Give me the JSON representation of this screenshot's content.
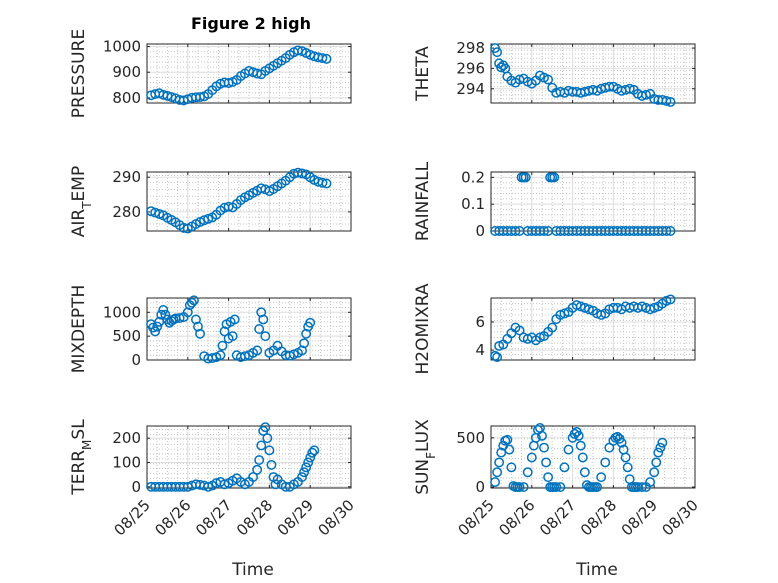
{
  "figure_title": "Figure 2 high",
  "x_axis": {
    "label": "Time",
    "ticks": [
      "08/25",
      "08/26",
      "08/27",
      "08/28",
      "08/29",
      "08/30"
    ],
    "range_days": [
      0,
      5
    ]
  },
  "colors": {
    "marker": "#0072BD",
    "axis": "#262626",
    "grid": "#dfdfdf"
  },
  "chart_data": [
    {
      "type": "scatter",
      "id": "pressure",
      "ylabel": "PRESSURE",
      "title": "Figure 2 high",
      "ylim": [
        780,
        1010
      ],
      "yticks": [
        800,
        900,
        1000
      ],
      "yticklabels": [
        "800",
        "900",
        "1000"
      ],
      "x": [
        0.1,
        0.2,
        0.3,
        0.4,
        0.5,
        0.6,
        0.7,
        0.8,
        0.9,
        1.0,
        1.1,
        1.2,
        1.3,
        1.4,
        1.5,
        1.6,
        1.7,
        1.8,
        1.9,
        2.0,
        2.1,
        2.2,
        2.3,
        2.4,
        2.5,
        2.6,
        2.7,
        2.8,
        2.9,
        3.0,
        3.1,
        3.2,
        3.3,
        3.4,
        3.5,
        3.6,
        3.7,
        3.8,
        3.9,
        4.0,
        4.1,
        4.2,
        4.3,
        4.4
      ],
      "values": [
        810,
        815,
        818,
        812,
        808,
        803,
        798,
        792,
        790,
        795,
        800,
        802,
        803,
        806,
        815,
        830,
        845,
        855,
        860,
        858,
        862,
        870,
        885,
        895,
        905,
        900,
        895,
        892,
        905,
        915,
        925,
        935,
        945,
        955,
        968,
        978,
        985,
        982,
        975,
        968,
        962,
        958,
        955,
        952
      ]
    },
    {
      "type": "scatter",
      "id": "theta",
      "ylabel": "THETA",
      "ylim": [
        292.6,
        298.4
      ],
      "yticks": [
        294,
        296,
        298
      ],
      "yticklabels": [
        "294",
        "296",
        "298"
      ],
      "x": [
        0.1,
        0.15,
        0.2,
        0.25,
        0.3,
        0.35,
        0.4,
        0.5,
        0.6,
        0.7,
        0.8,
        0.9,
        1.0,
        1.1,
        1.2,
        1.3,
        1.4,
        1.5,
        1.6,
        1.7,
        1.8,
        1.9,
        2.0,
        2.1,
        2.2,
        2.3,
        2.4,
        2.5,
        2.6,
        2.7,
        2.8,
        2.9,
        3.0,
        3.1,
        3.2,
        3.3,
        3.4,
        3.5,
        3.6,
        3.7,
        3.8,
        3.9,
        4.0,
        4.1,
        4.2,
        4.3,
        4.4
      ],
      "values": [
        298.0,
        297.6,
        296.5,
        296.1,
        296.3,
        296.0,
        295.2,
        294.8,
        294.6,
        294.9,
        295.0,
        294.7,
        294.5,
        294.8,
        295.3,
        295.1,
        294.9,
        294.1,
        293.6,
        293.7,
        293.6,
        293.8,
        293.7,
        293.7,
        293.6,
        293.7,
        293.8,
        293.9,
        293.8,
        294.0,
        294.1,
        294.2,
        294.2,
        294.0,
        293.8,
        293.9,
        294.0,
        293.9,
        293.5,
        293.3,
        293.4,
        293.5,
        293.0,
        292.9,
        292.9,
        292.8,
        292.7
      ]
    },
    {
      "type": "scatter",
      "id": "air_temp",
      "ylabel_main": "AIR",
      "ylabel_sub": "T",
      "ylabel_rest": "EMP",
      "ylim": [
        274.5,
        291.5
      ],
      "yticks": [
        280,
        290
      ],
      "yticklabels": [
        "280",
        "290"
      ],
      "x": [
        0.1,
        0.2,
        0.3,
        0.4,
        0.5,
        0.6,
        0.7,
        0.8,
        0.9,
        1.0,
        1.1,
        1.2,
        1.3,
        1.4,
        1.5,
        1.6,
        1.7,
        1.8,
        1.9,
        2.0,
        2.1,
        2.2,
        2.3,
        2.4,
        2.5,
        2.6,
        2.7,
        2.8,
        2.9,
        3.0,
        3.1,
        3.2,
        3.3,
        3.4,
        3.5,
        3.6,
        3.7,
        3.8,
        3.9,
        4.0,
        4.1,
        4.2,
        4.3,
        4.4
      ],
      "values": [
        280.2,
        279.8,
        279.4,
        279.0,
        278.3,
        277.7,
        277.0,
        276.2,
        275.4,
        275.2,
        275.8,
        276.5,
        277.1,
        277.6,
        278.0,
        278.4,
        279.2,
        280.4,
        281.2,
        281.5,
        281.3,
        282.3,
        283.4,
        284.2,
        284.8,
        285.5,
        286.1,
        286.8,
        286.5,
        286.0,
        286.6,
        287.4,
        288.2,
        289.0,
        290.0,
        291.0,
        291.3,
        291.1,
        290.8,
        290.0,
        289.2,
        288.7,
        288.4,
        288.2
      ]
    },
    {
      "type": "scatter",
      "id": "rainfall",
      "ylabel": "RAINFALL",
      "ylim": [
        0,
        0.22
      ],
      "yticks": [
        0,
        0.1,
        0.2
      ],
      "yticklabels": [
        "0",
        "0.1",
        "0.2"
      ],
      "x": [
        0.1,
        0.2,
        0.3,
        0.4,
        0.5,
        0.6,
        0.7,
        0.75,
        0.8,
        0.85,
        0.9,
        1.0,
        1.1,
        1.2,
        1.3,
        1.4,
        1.45,
        1.5,
        1.55,
        1.6,
        1.7,
        1.8,
        1.9,
        2.0,
        2.1,
        2.2,
        2.3,
        2.4,
        2.5,
        2.6,
        2.7,
        2.8,
        2.9,
        3.0,
        3.1,
        3.2,
        3.3,
        3.4,
        3.5,
        3.6,
        3.7,
        3.8,
        3.9,
        4.0,
        4.1,
        4.2,
        4.3,
        4.4
      ],
      "values": [
        0,
        0,
        0,
        0,
        0,
        0,
        0,
        0.2,
        0.2,
        0.2,
        0,
        0,
        0,
        0,
        0,
        0,
        0.2,
        0.2,
        0.2,
        0,
        0,
        0,
        0,
        0,
        0,
        0,
        0,
        0,
        0,
        0,
        0,
        0,
        0,
        0,
        0,
        0,
        0,
        0,
        0,
        0,
        0,
        0,
        0,
        0,
        0,
        0,
        0,
        0
      ]
    },
    {
      "type": "scatter",
      "id": "mixdepth",
      "ylabel": "MIXDEPTH",
      "ylim": [
        0,
        1300
      ],
      "yticks": [
        0,
        500,
        1000
      ],
      "yticklabels": [
        "0",
        "500",
        "1000"
      ],
      "x": [
        0.1,
        0.15,
        0.2,
        0.25,
        0.3,
        0.35,
        0.4,
        0.45,
        0.5,
        0.55,
        0.6,
        0.65,
        0.7,
        0.8,
        0.9,
        1.0,
        1.05,
        1.1,
        1.15,
        1.2,
        1.25,
        1.3,
        1.4,
        1.5,
        1.6,
        1.7,
        1.8,
        1.85,
        1.9,
        1.95,
        2.0,
        2.05,
        2.1,
        2.15,
        2.2,
        2.3,
        2.4,
        2.5,
        2.6,
        2.7,
        2.75,
        2.8,
        2.85,
        2.9,
        3.0,
        3.1,
        3.2,
        3.3,
        3.4,
        3.5,
        3.6,
        3.7,
        3.8,
        3.85,
        3.9,
        3.95,
        4.0
      ],
      "values": [
        750,
        680,
        600,
        700,
        800,
        950,
        1050,
        950,
        850,
        780,
        820,
        850,
        870,
        880,
        900,
        1000,
        1150,
        1200,
        1250,
        850,
        700,
        550,
        80,
        30,
        40,
        60,
        100,
        300,
        600,
        750,
        450,
        800,
        500,
        850,
        100,
        60,
        80,
        100,
        150,
        200,
        650,
        1000,
        850,
        500,
        150,
        200,
        300,
        180,
        100,
        90,
        120,
        150,
        200,
        350,
        550,
        700,
        780
      ]
    },
    {
      "type": "scatter",
      "id": "h2omixra",
      "ylabel": "H2OMIXRA",
      "ylim": [
        3.3,
        7.7
      ],
      "yticks": [
        4,
        6
      ],
      "yticklabels": [
        "4",
        "6"
      ],
      "x": [
        0.1,
        0.15,
        0.2,
        0.3,
        0.4,
        0.5,
        0.6,
        0.7,
        0.8,
        0.9,
        1.0,
        1.1,
        1.2,
        1.3,
        1.4,
        1.5,
        1.6,
        1.7,
        1.8,
        1.9,
        2.0,
        2.1,
        2.2,
        2.3,
        2.4,
        2.5,
        2.6,
        2.7,
        2.8,
        2.9,
        3.0,
        3.1,
        3.2,
        3.3,
        3.4,
        3.5,
        3.6,
        3.7,
        3.8,
        3.9,
        4.0,
        4.1,
        4.2,
        4.3,
        4.4
      ],
      "values": [
        3.6,
        3.5,
        4.3,
        4.4,
        4.8,
        5.2,
        5.6,
        5.4,
        4.9,
        4.8,
        4.9,
        4.7,
        4.9,
        5.0,
        5.3,
        5.6,
        6.2,
        6.5,
        6.6,
        6.7,
        7.0,
        7.2,
        7.1,
        7.0,
        6.9,
        6.8,
        6.6,
        6.5,
        6.6,
        6.9,
        7.0,
        7.0,
        6.9,
        7.1,
        7.0,
        7.1,
        7.0,
        7.1,
        7.0,
        6.9,
        7.0,
        7.1,
        7.3,
        7.5,
        7.6
      ]
    },
    {
      "type": "scatter",
      "id": "terr_msl",
      "ylabel_main": "TERR",
      "ylabel_sub": "M",
      "ylabel_rest": "SL",
      "ylim": [
        -5,
        250
      ],
      "yticks": [
        0,
        100,
        200
      ],
      "yticklabels": [
        "0",
        "100",
        "200"
      ],
      "x": [
        0.1,
        0.2,
        0.3,
        0.4,
        0.5,
        0.6,
        0.7,
        0.8,
        0.9,
        1.0,
        1.1,
        1.2,
        1.3,
        1.4,
        1.5,
        1.6,
        1.7,
        1.8,
        1.9,
        2.0,
        2.1,
        2.2,
        2.3,
        2.4,
        2.5,
        2.6,
        2.7,
        2.75,
        2.8,
        2.85,
        2.9,
        2.95,
        3.0,
        3.05,
        3.1,
        3.15,
        3.2,
        3.3,
        3.4,
        3.5,
        3.6,
        3.7,
        3.8,
        3.85,
        3.9,
        3.95,
        4.0,
        4.05,
        4.1
      ],
      "values": [
        0,
        0,
        0,
        0,
        0,
        0,
        0,
        0,
        0,
        0,
        5,
        10,
        8,
        5,
        0,
        5,
        15,
        20,
        10,
        15,
        25,
        35,
        20,
        10,
        20,
        40,
        70,
        110,
        170,
        230,
        245,
        200,
        150,
        90,
        40,
        10,
        30,
        10,
        0,
        0,
        10,
        20,
        40,
        60,
        80,
        100,
        120,
        140,
        150
      ]
    },
    {
      "type": "scatter",
      "id": "sun_flux",
      "ylabel_main": "SUN",
      "ylabel_sub": "F",
      "ylabel_rest": "LUX",
      "ylim": [
        -10,
        620
      ],
      "yticks": [
        0,
        500
      ],
      "yticklabels": [
        "0",
        "500"
      ],
      "x": [
        0.1,
        0.15,
        0.2,
        0.25,
        0.3,
        0.35,
        0.4,
        0.45,
        0.5,
        0.55,
        0.6,
        0.65,
        0.7,
        0.8,
        0.9,
        1.0,
        1.05,
        1.1,
        1.15,
        1.2,
        1.25,
        1.3,
        1.35,
        1.4,
        1.45,
        1.5,
        1.55,
        1.6,
        1.7,
        1.8,
        1.9,
        2.0,
        2.05,
        2.1,
        2.15,
        2.2,
        2.25,
        2.3,
        2.35,
        2.4,
        2.45,
        2.5,
        2.55,
        2.6,
        2.7,
        2.8,
        2.9,
        3.0,
        3.05,
        3.1,
        3.15,
        3.2,
        3.25,
        3.3,
        3.35,
        3.4,
        3.45,
        3.5,
        3.55,
        3.6,
        3.7,
        3.8,
        3.9,
        4.0,
        4.05,
        4.1,
        4.15,
        4.2
      ],
      "values": [
        50,
        150,
        250,
        350,
        420,
        470,
        480,
        380,
        200,
        10,
        0,
        0,
        0,
        0,
        150,
        300,
        420,
        500,
        580,
        600,
        520,
        400,
        250,
        100,
        0,
        0,
        0,
        0,
        0,
        200,
        380,
        500,
        540,
        560,
        520,
        420,
        300,
        150,
        20,
        0,
        0,
        0,
        0,
        0,
        100,
        250,
        400,
        470,
        500,
        510,
        490,
        450,
        380,
        300,
        200,
        80,
        0,
        0,
        0,
        0,
        0,
        0,
        50,
        150,
        250,
        350,
        400,
        450
      ]
    }
  ]
}
